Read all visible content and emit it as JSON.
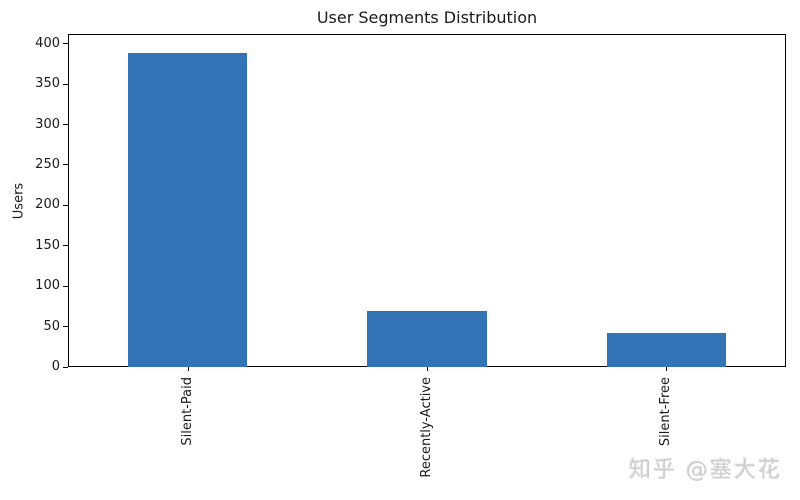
{
  "watermark": "知乎 @塞大花",
  "colors": {
    "bar": "#3274b5",
    "background": "#ffffff",
    "text": "#1a1a1a",
    "watermark": "#cecece"
  },
  "chart_data": {
    "type": "bar",
    "title": "User Segments Distribution",
    "categories": [
      "Silent-Paid",
      "Recently-Active",
      "Silent-Free"
    ],
    "values": [
      389,
      69,
      42
    ],
    "xlabel": "",
    "ylabel": "Users",
    "ylim": [
      0,
      412
    ],
    "yticks": [
      0,
      50,
      100,
      150,
      200,
      250,
      300,
      350,
      400
    ],
    "xtick_rotation": 90,
    "bar_color": "#3274b5",
    "bar_width_fraction": 0.5,
    "grid": false,
    "legend_position": "none"
  }
}
